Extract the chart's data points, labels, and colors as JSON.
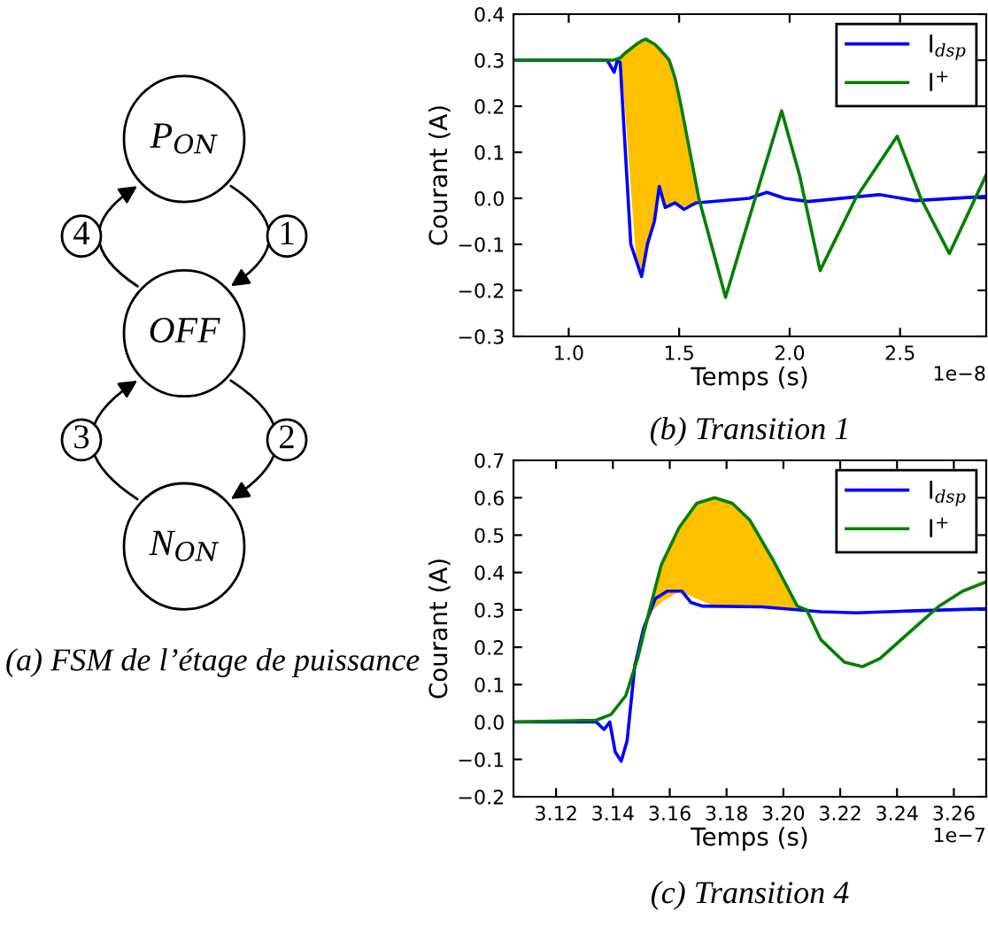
{
  "chart_data": [
    {
      "type": "other",
      "title": "(a) FSM de l’étage de puissance",
      "annotations": [
        "P$_{ON}$",
        "OFF",
        "N$_{ON}$",
        "1",
        "2",
        "3",
        "4"
      ]
    },
    {
      "type": "line",
      "title": "(b) Transition 1",
      "xlabel": "Temps (s)",
      "ylabel": "Courant (A)",
      "annotations": [
        "1e−8"
      ],
      "xlim": [
        0.75,
        2.89
      ],
      "xticks": [
        {
          "value": 1.0,
          "label": "1.0"
        },
        1.5,
        {
          "value": 2.0,
          "label": "2.0"
        },
        2.5
      ],
      "ylim": [
        -0.3,
        0.4
      ],
      "yticks": [
        {
          "value": -0.3,
          "label": "−0.3"
        },
        {
          "value": -0.2,
          "label": "−0.2"
        },
        {
          "value": -0.1,
          "label": "−0.1"
        },
        {
          "value": 0.0,
          "label": "0.0"
        },
        0.1,
        0.2,
        0.3,
        0.4
      ],
      "legend": "top right",
      "grid": false,
      "series": [
        {
          "name": "I$_{dsp}$",
          "color": "#0000ff",
          "x": [
            0.75,
            1.174,
            1.206,
            1.22,
            1.233,
            1.281,
            1.33,
            1.356,
            1.388,
            1.41,
            1.437,
            1.482,
            1.522,
            1.576,
            1.817,
            1.897,
            1.978,
            2.085,
            2.406,
            2.567,
            2.889
          ],
          "values": [
            0.3,
            0.3,
            0.274,
            0.3,
            0.295,
            -0.1,
            -0.17,
            -0.1,
            -0.05,
            0.026,
            -0.02,
            -0.01,
            -0.024,
            -0.01,
            0.0,
            0.013,
            0.0,
            -0.007,
            0.008,
            -0.005,
            0.004
          ]
        },
        {
          "name": "I$^{+}$",
          "color": "#008000",
          "x": [
            0.75,
            1.201,
            1.233,
            1.254,
            1.308,
            1.33,
            1.348,
            1.388,
            1.41,
            1.437,
            1.455,
            1.482,
            1.509,
            1.549,
            1.589,
            1.71,
            1.844,
            1.964,
            2.045,
            2.138,
            2.299,
            2.487,
            2.594,
            2.723,
            2.889
          ],
          "values": [
            0.3,
            0.3,
            0.305,
            0.315,
            0.335,
            0.342,
            0.346,
            0.335,
            0.325,
            0.31,
            0.3,
            0.26,
            0.2,
            0.1,
            0.0,
            -0.215,
            0.0,
            0.19,
            0.05,
            -0.157,
            0.0,
            0.135,
            0.0,
            -0.12,
            0.05
          ],
          "lower": [
            null,
            null,
            0.295,
            0.2,
            -0.15,
            -0.17,
            -0.14,
            -0.05,
            0.026,
            -0.02,
            -0.015,
            -0.01,
            -0.02,
            -0.015,
            -0.01,
            null,
            null,
            null,
            null,
            null,
            null,
            null,
            null,
            null,
            null
          ],
          "upper": [
            null,
            null,
            0.305,
            0.315,
            0.335,
            0.342,
            0.346,
            0.335,
            0.325,
            0.31,
            0.3,
            0.26,
            0.2,
            0.1,
            0.0,
            null,
            null,
            null,
            null,
            null,
            null,
            null,
            null,
            null,
            null
          ]
        }
      ]
    },
    {
      "type": "line",
      "title": "(c) Transition 4",
      "xlabel": "Temps (s)",
      "ylabel": "Courant (A)",
      "annotations": [
        "1e−7"
      ],
      "xlim": [
        3.105,
        3.2714
      ],
      "xticks": [
        3.12,
        3.14,
        3.16,
        3.18,
        {
          "value": 3.2,
          "label": "3.20"
        },
        3.22,
        3.24,
        3.26
      ],
      "ylim": [
        -0.2,
        0.7
      ],
      "yticks": [
        {
          "value": -0.2,
          "label": "−0.2"
        },
        {
          "value": -0.1,
          "label": "−0.1"
        },
        {
          "value": 0.0,
          "label": "0.0"
        },
        0.1,
        0.2,
        0.3,
        0.4,
        0.5,
        0.6,
        0.7
      ],
      "legend": "top right",
      "grid": false,
      "series": [
        {
          "name": "I$_{dsp}$",
          "color": "#0000ff",
          "x": [
            3.105,
            3.1341,
            3.1369,
            3.1389,
            3.1408,
            3.1429,
            3.145,
            3.1477,
            3.1508,
            3.1549,
            3.1591,
            3.1643,
            3.1674,
            3.1716,
            3.1924,
            3.2132,
            3.2257,
            3.2444,
            3.2714
          ],
          "values": [
            0.0,
            0.0,
            -0.02,
            0.0,
            -0.08,
            -0.105,
            -0.05,
            0.15,
            0.25,
            0.33,
            0.35,
            0.35,
            0.32,
            0.31,
            0.308,
            0.295,
            0.292,
            0.297,
            0.303
          ]
        },
        {
          "name": "I$^{+}$",
          "color": "#008000",
          "x": [
            3.105,
            3.1341,
            3.1393,
            3.1445,
            3.1487,
            3.1529,
            3.157,
            3.1633,
            3.1695,
            3.1758,
            3.182,
            3.1882,
            3.1966,
            3.2049,
            3.2082,
            3.2132,
            3.2215,
            3.2278,
            3.234,
            3.2444,
            3.2548,
            3.2631,
            3.2714
          ],
          "values": [
            0.0,
            0.005,
            0.02,
            0.07,
            0.17,
            0.3,
            0.42,
            0.52,
            0.585,
            0.6,
            0.585,
            0.54,
            0.43,
            0.31,
            0.3,
            0.22,
            0.16,
            0.148,
            0.17,
            0.24,
            0.31,
            0.35,
            0.375
          ],
          "lower": [
            null,
            null,
            null,
            null,
            null,
            0.29,
            0.32,
            0.35,
            0.33,
            0.31,
            0.308,
            0.307,
            0.303,
            0.298,
            0.297,
            null,
            null,
            null,
            null,
            null,
            null,
            null,
            null
          ],
          "upper": [
            null,
            null,
            null,
            null,
            null,
            0.3,
            0.42,
            0.52,
            0.585,
            0.6,
            0.585,
            0.54,
            0.43,
            0.31,
            0.3,
            null,
            null,
            null,
            null,
            null,
            null,
            null,
            null
          ]
        }
      ]
    }
  ]
}
